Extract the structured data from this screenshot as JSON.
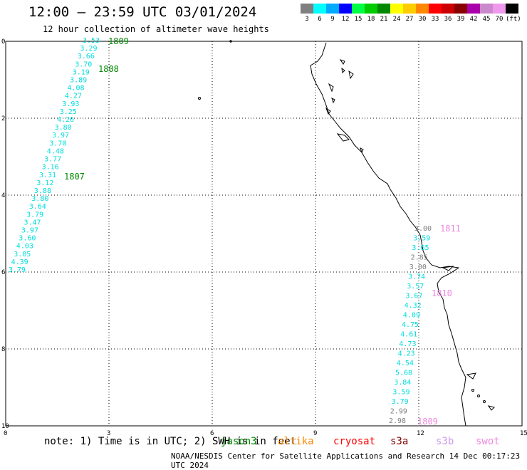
{
  "header": {
    "title": "12:00 — 23:59 UTC 03/01/2024",
    "subtitle": "12 hour collection of altimeter wave heights"
  },
  "legend": {
    "colors": [
      "#808080",
      "#00ffff",
      "#00aaff",
      "#0000ff",
      "#00ff44",
      "#00cc00",
      "#008800",
      "#ffff00",
      "#ffcc00",
      "#ff8800",
      "#ff0000",
      "#cc0000",
      "#880000",
      "#aa00aa",
      "#cc88cc",
      "#ee99ee",
      "#000000"
    ],
    "labels": [
      "3",
      "6",
      "9",
      "12",
      "15",
      "18",
      "21",
      "24",
      "27",
      "30",
      "33",
      "36",
      "39",
      "42",
      "45",
      "70",
      "(ft)"
    ]
  },
  "axes": {
    "x_ticks": [
      "0",
      "3",
      "6",
      "9",
      "12",
      "15"
    ],
    "y_ticks": [
      "0",
      "2",
      "4",
      "6",
      "8",
      "10"
    ]
  },
  "tracks": [
    {
      "pass": "1809",
      "pass_color": "#008800",
      "values": [
        "3.53",
        "3.29",
        "3.66",
        "3.70",
        "3.19",
        "3.89",
        "4.08",
        "4.27",
        "3.93",
        "3.25",
        "4.26",
        "3.80",
        "3.97",
        "3.70",
        "4.48",
        "3.77",
        "3.16",
        "3.31",
        "3.12",
        "3.88",
        "3.80",
        "3.64",
        "3.79",
        "3.47",
        "3.97",
        "3.60",
        "4.03",
        "3.05",
        "4.39",
        "3.79"
      ],
      "colors": [
        "c",
        "c",
        "c",
        "c",
        "c",
        "c",
        "c",
        "c",
        "c",
        "c",
        "c",
        "c",
        "c",
        "c",
        "c",
        "c",
        "c",
        "c",
        "c",
        "c",
        "c",
        "c",
        "c",
        "c",
        "c",
        "c",
        "c",
        "c",
        "c",
        "c"
      ]
    },
    {
      "pass": "1808",
      "pass_color": "#008800",
      "values": [],
      "colors": []
    },
    {
      "pass": "1807",
      "pass_color": "#008800",
      "values": [],
      "colors": []
    },
    {
      "pass": "1811",
      "pass_color": "#ee88dd",
      "values": [
        "3.00",
        "3.59",
        "3.65",
        "2.85",
        "3.00",
        "3.74",
        "3.57",
        "3.67",
        "4.32",
        "4.09",
        "4.75",
        "4.61",
        "4.73",
        "4.23",
        "4.54",
        "5.68",
        "3.84",
        "3.59",
        "3.79",
        "2.99",
        "2.98"
      ],
      "colors": [
        "g",
        "c",
        "c",
        "g",
        "g",
        "c",
        "c",
        "c",
        "c",
        "c",
        "c",
        "c",
        "c",
        "c",
        "c",
        "c",
        "c",
        "c",
        "c",
        "g",
        "g"
      ]
    },
    {
      "pass": "1810",
      "pass_color": "#ee88dd",
      "values": [],
      "colors": []
    },
    {
      "pass": "1809",
      "pass_color": "#ee88dd",
      "values": [],
      "colors": []
    }
  ],
  "footer": {
    "note": "note: 1) Time is in UTC; 2) SWH is in feet",
    "missions": [
      {
        "name": "jason3",
        "color": "#008800"
      },
      {
        "name": "altika",
        "color": "#ff8800"
      },
      {
        "name": "cryosat",
        "color": "#ff0000"
      },
      {
        "name": "s3a",
        "color": "#880000"
      },
      {
        "name": "s3b",
        "color": "#cc99ee"
      },
      {
        "name": "swot",
        "color": "#ee88dd"
      }
    ],
    "credit": "NOAA/NESDIS Center for Satellite Applications and Research    14 Dec 00:17:23 UTC 2024"
  }
}
